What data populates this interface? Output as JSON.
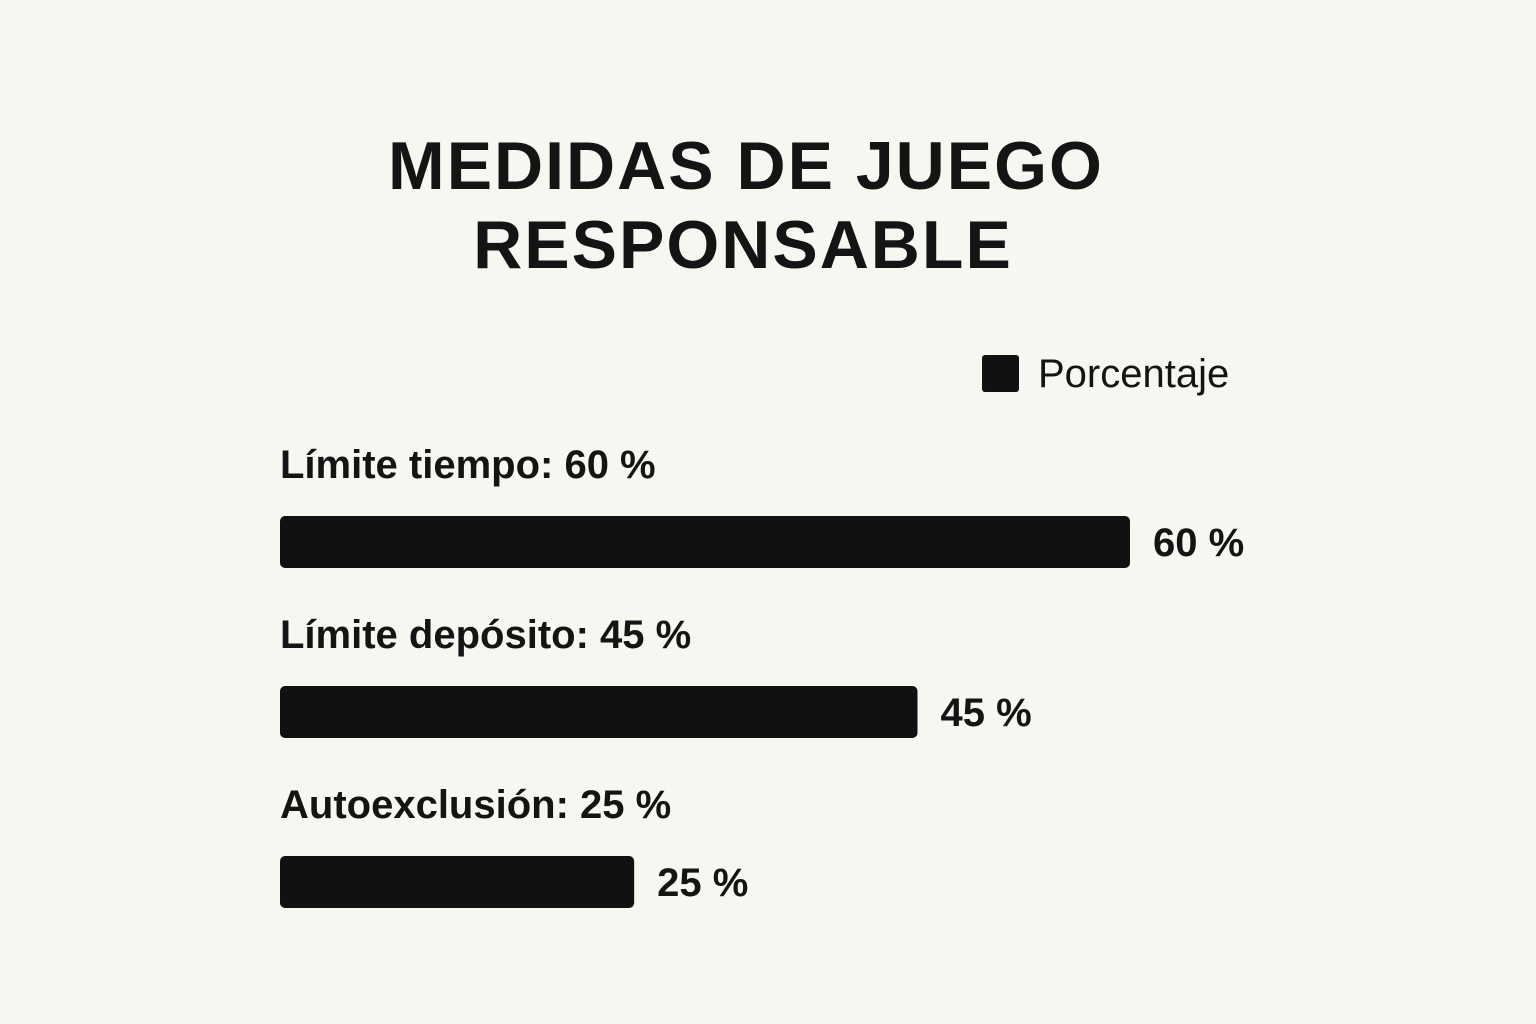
{
  "colors": {
    "background": "#f8f6f1",
    "bar": "#111111",
    "text": "#141414"
  },
  "chart_data": {
    "type": "bar",
    "orientation": "horizontal",
    "title_lines": [
      "MEDIDAS DE JUEGO",
      "RESPONSABLE"
    ],
    "legend": {
      "label": "Porcentaje",
      "placement": "top-right"
    },
    "categories": [
      "Límite tiempo",
      "Límite depósito",
      "Autoexclusión"
    ],
    "category_labels": [
      "Límite tiempo: 60 %",
      "Límite depósito: 45 %",
      "Autoexclusión: 25 %"
    ],
    "values": [
      60,
      45,
      25
    ],
    "value_labels": [
      "60 %",
      "45 %",
      "25 %"
    ],
    "unit": "%",
    "xlim": [
      0,
      60
    ],
    "grid": false,
    "axes_visible": false
  }
}
